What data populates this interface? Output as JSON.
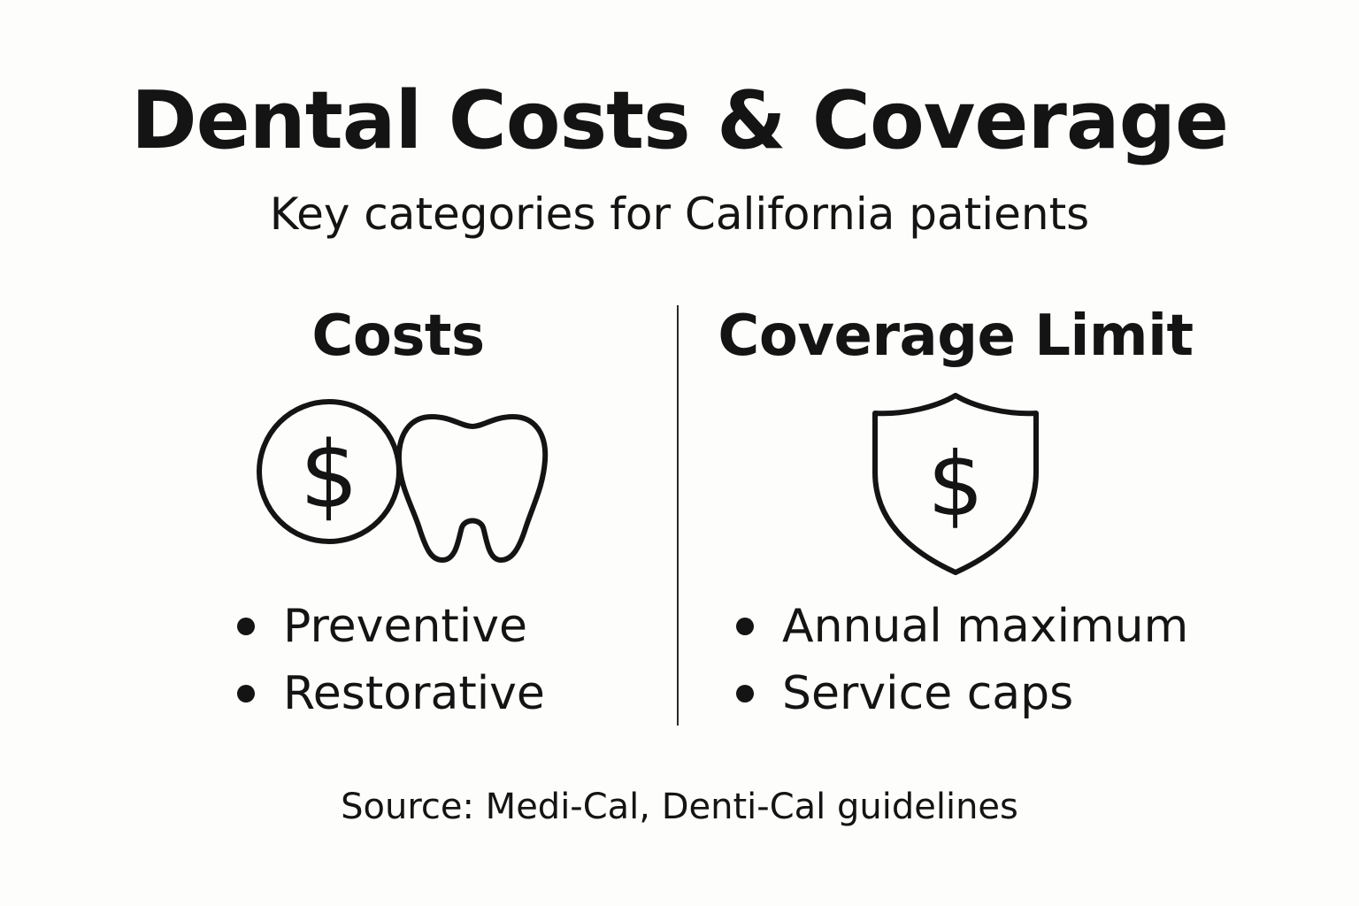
{
  "header": {
    "title": "Dental Costs & Coverage",
    "subtitle": "Key categories for California patients"
  },
  "columns": [
    {
      "heading": "Costs",
      "icons": [
        "dollar-coin-icon",
        "tooth-icon"
      ],
      "bullets": [
        "Preventive",
        "Restorative"
      ]
    },
    {
      "heading": "Coverage Limit",
      "icons": [
        "shield-dollar-icon"
      ],
      "bullets": [
        "Annual maximum",
        "Service caps"
      ]
    }
  ],
  "footer": {
    "source": "Source: Medi-Cal, Denti-Cal guidelines"
  },
  "colors": {
    "ink": "#141414",
    "background": "#fdfdfb"
  }
}
